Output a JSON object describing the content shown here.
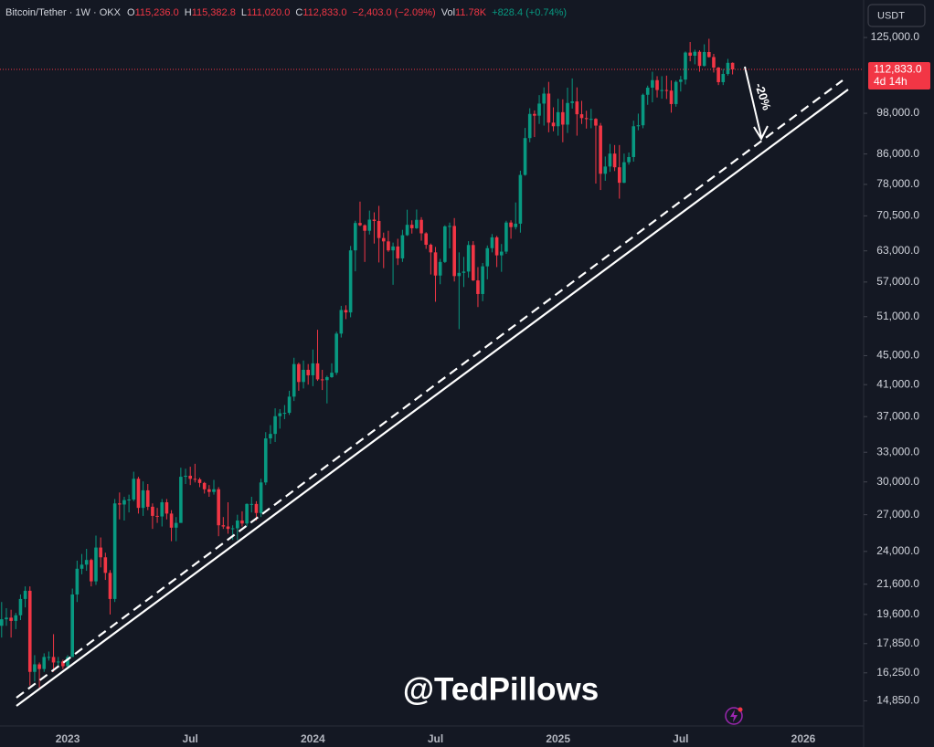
{
  "chart_data": {
    "type": "candlestick",
    "title": "Bitcoin/Tether · 1W · OKX",
    "legend": [
      {
        "label": "O",
        "value": "115,236.0"
      },
      {
        "label": "H",
        "value": "115,382.8"
      },
      {
        "label": "L",
        "value": "111,020.0"
      },
      {
        "label": "C",
        "value": "112,833.0"
      },
      {
        "label": "",
        "value": "−2,403.0 (−2.09%)"
      },
      {
        "label": "Vol",
        "value": "11.78K"
      },
      {
        "label": "",
        "value": "+828.4 (+0.74%)"
      }
    ],
    "currency": "USDT",
    "last_price": {
      "value": 112833,
      "label": "112,833.0"
    },
    "countdown": "4d 14h",
    "annotation": "-20%",
    "watermark": "@TedPillows",
    "log_scale": true,
    "grid": false,
    "up_color": "#089981",
    "down_color": "#f23645",
    "ylim": [
      13700,
      141000
    ],
    "yticks": [
      {
        "value": 125000,
        "label": "125,000.0"
      },
      {
        "value": 98000,
        "label": "98,000.0"
      },
      {
        "value": 86000,
        "label": "86,000.0"
      },
      {
        "value": 78000,
        "label": "78,000.0"
      },
      {
        "value": 70500,
        "label": "70,500.0"
      },
      {
        "value": 63000,
        "label": "63,000.0"
      },
      {
        "value": 57000,
        "label": "57,000.0"
      },
      {
        "value": 51000,
        "label": "51,000.0"
      },
      {
        "value": 45000,
        "label": "45,000.0"
      },
      {
        "value": 41000,
        "label": "41,000.0"
      },
      {
        "value": 37000,
        "label": "37,000.0"
      },
      {
        "value": 33000,
        "label": "33,000.0"
      },
      {
        "value": 30000,
        "label": "30,000.0"
      },
      {
        "value": 27000,
        "label": "27,000.0"
      },
      {
        "value": 24000,
        "label": "24,000.0"
      },
      {
        "value": 21600,
        "label": "21,600.0"
      },
      {
        "value": 19600,
        "label": "19,600.0"
      },
      {
        "value": 17850,
        "label": "17,850.0"
      },
      {
        "value": 16250,
        "label": "16,250.0"
      },
      {
        "value": 14850,
        "label": "14,850.0"
      }
    ],
    "categories": [
      null,
      null,
      null,
      null,
      null,
      null,
      null,
      null,
      null,
      null,
      null,
      null,
      null,
      null,
      "2023",
      null,
      null,
      null,
      null,
      null,
      null,
      null,
      null,
      null,
      null,
      null,
      null,
      null,
      null,
      null,
      null,
      null,
      null,
      null,
      null,
      null,
      null,
      null,
      null,
      null,
      "Jul",
      null,
      null,
      null,
      null,
      null,
      null,
      null,
      null,
      null,
      null,
      null,
      null,
      null,
      null,
      null,
      null,
      null,
      null,
      null,
      null,
      null,
      null,
      null,
      null,
      null,
      "2024",
      null,
      null,
      null,
      null,
      null,
      null,
      null,
      null,
      null,
      null,
      null,
      null,
      null,
      null,
      null,
      null,
      null,
      null,
      null,
      null,
      null,
      null,
      null,
      null,
      null,
      "Jul",
      null,
      null,
      null,
      null,
      null,
      null,
      null,
      null,
      null,
      null,
      null,
      null,
      null,
      null,
      null,
      null,
      null,
      null,
      null,
      null,
      null,
      null,
      null,
      null,
      null,
      "2025",
      null,
      null,
      null,
      null,
      null,
      null,
      null,
      null,
      null,
      null,
      null,
      null,
      null,
      null,
      null,
      null,
      null,
      null,
      null,
      null,
      null,
      null,
      null,
      null,
      null,
      "Jul",
      null,
      null,
      null,
      null,
      null,
      null,
      null,
      null,
      null,
      null,
      null,
      null,
      null,
      null,
      null,
      null,
      null,
      null,
      null,
      null,
      null,
      null,
      null,
      null,
      null,
      "2026"
    ],
    "open": [
      18900,
      19300,
      19400,
      19200,
      19550,
      20600,
      21150,
      16300,
      16700,
      16450,
      17100,
      17100,
      16800,
      16850,
      16600,
      17100,
      20900,
      22700,
      23000,
      23350,
      21800,
      24300,
      23550,
      22400,
      20600,
      28000,
      27900,
      28300,
      28350,
      30300,
      27600,
      29200,
      27700,
      26900,
      26850,
      28100,
      27100,
      25900,
      26300,
      30500,
      30600,
      30300,
      30250,
      29900,
      29300,
      29050,
      29300,
      26100,
      26000,
      25800,
      25850,
      26500,
      26250,
      27950,
      27950,
      27150,
      29950,
      34500,
      35000,
      37050,
      37400,
      37450,
      39450,
      43800,
      41350,
      43000,
      42250,
      43900,
      41700,
      41600,
      42000,
      42600,
      48300,
      52100,
      51700,
      63100,
      68900,
      68400,
      67200,
      69650,
      69350,
      65650,
      64950,
      63100,
      63900,
      61500,
      66250,
      68500,
      67750,
      69600,
      66650,
      64250,
      62700,
      58200,
      60800,
      68150,
      68250,
      58100,
      58700,
      58950,
      64200,
      57300,
      54850,
      59950,
      63550,
      65800,
      62100,
      62850,
      69000,
      68000,
      68750,
      80400,
      90500,
      97800,
      97250,
      101100,
      104400,
      95100,
      94000,
      98350,
      94500,
      101300,
      101800,
      97700,
      96500,
      96200,
      96250,
      94200,
      80700,
      82600,
      86100,
      82400,
      78400,
      83750,
      85150,
      94000,
      94300,
      104000,
      106400,
      109000,
      105600,
      105600,
      105400,
      100950,
      108400,
      109200,
      119100,
      117900,
      119400,
      114100,
      119300,
      117400,
      113500,
      108300,
      111200,
      115236,
      null,
      null,
      null,
      null,
      null,
      null,
      null,
      null,
      null,
      null,
      null,
      null,
      null,
      null,
      null
    ],
    "high": [
      20400,
      20000,
      19900,
      19700,
      20900,
      21450,
      21450,
      17200,
      16800,
      17300,
      17400,
      18400,
      17100,
      16950,
      17200,
      21300,
      23300,
      23800,
      24200,
      23450,
      25250,
      25100,
      23900,
      22600,
      28400,
      29000,
      28600,
      28800,
      31000,
      30500,
      30050,
      29800,
      28000,
      27600,
      28400,
      28400,
      27400,
      26800,
      31400,
      31300,
      31500,
      31800,
      30400,
      30000,
      29700,
      30200,
      29500,
      26800,
      28100,
      26100,
      27000,
      27300,
      28000,
      28600,
      28200,
      30300,
      35200,
      36000,
      38000,
      37900,
      38400,
      40200,
      44700,
      44000,
      44300,
      43800,
      45900,
      48900,
      43000,
      42200,
      43900,
      48600,
      52800,
      52900,
      64000,
      69400,
      73800,
      68600,
      71700,
      71300,
      72800,
      66800,
      67200,
      64700,
      65500,
      67400,
      71900,
      69500,
      71950,
      70200,
      66900,
      64500,
      63800,
      61400,
      68400,
      69000,
      70000,
      62700,
      61800,
      65000,
      65000,
      59800,
      60600,
      64100,
      66500,
      66100,
      64400,
      69400,
      69500,
      73600,
      81500,
      93500,
      99600,
      98900,
      103900,
      106500,
      108400,
      99900,
      102700,
      102500,
      106400,
      109600,
      106500,
      102000,
      98800,
      99400,
      96500,
      95000,
      85300,
      88800,
      88500,
      88500,
      86100,
      86400,
      95700,
      97900,
      104400,
      107100,
      112000,
      110400,
      110400,
      110600,
      108900,
      108900,
      110500,
      119500,
      123200,
      120200,
      120000,
      122300,
      124500,
      118600,
      113700,
      113000,
      116700,
      115382.8,
      null,
      null,
      null,
      null,
      null,
      null,
      null,
      null,
      null,
      null,
      null,
      null,
      null,
      null,
      null
    ],
    "low": [
      18200,
      18900,
      18200,
      18700,
      19250,
      20050,
      15600,
      15800,
      15500,
      16300,
      16900,
      16300,
      16550,
      16450,
      16500,
      17100,
      20400,
      22300,
      22550,
      21450,
      21550,
      22800,
      21900,
      19600,
      20400,
      26600,
      26500,
      27200,
      28200,
      27100,
      26900,
      27400,
      25800,
      26300,
      26000,
      26600,
      24800,
      24800,
      26300,
      29800,
      29700,
      29950,
      29500,
      28900,
      28600,
      28800,
      25200,
      25800,
      25400,
      24900,
      24900,
      26000,
      26000,
      27200,
      26500,
      26800,
      29700,
      33900,
      34100,
      35600,
      36700,
      37200,
      38900,
      40200,
      40500,
      41000,
      40800,
      41500,
      40300,
      38600,
      41900,
      42300,
      47700,
      50600,
      50900,
      59000,
      68200,
      60800,
      66400,
      64500,
      60700,
      59600,
      62800,
      56500,
      60200,
      60800,
      66100,
      66600,
      67600,
      65100,
      63400,
      58400,
      53500,
      56600,
      60600,
      63500,
      57100,
      49000,
      56100,
      57800,
      57200,
      52600,
      53600,
      57500,
      62700,
      59800,
      58900,
      62400,
      65500,
      67500,
      66800,
      80200,
      89300,
      90800,
      94700,
      94200,
      92200,
      92500,
      91200,
      89300,
      92000,
      99500,
      91200,
      94700,
      93300,
      93400,
      78200,
      76600,
      78900,
      81200,
      81400,
      74500,
      78300,
      83100,
      83900,
      92800,
      93400,
      100700,
      101500,
      103100,
      102700,
      102600,
      98200,
      100100,
      105100,
      107500,
      115800,
      114700,
      112000,
      113900,
      117200,
      111700,
      107300,
      107300,
      110600,
      111020,
      null,
      null,
      null,
      null,
      null,
      null,
      null,
      null,
      null,
      null,
      null,
      null,
      null,
      null,
      null
    ],
    "close": [
      19300,
      19400,
      19200,
      19550,
      20600,
      21150,
      16300,
      16700,
      16450,
      17100,
      17100,
      16800,
      16850,
      16600,
      17100,
      20900,
      22700,
      23000,
      23350,
      21800,
      24300,
      23550,
      22400,
      20600,
      28000,
      27900,
      28300,
      28350,
      30300,
      27600,
      29200,
      27700,
      26900,
      26850,
      28100,
      27100,
      25900,
      26300,
      30500,
      30600,
      30300,
      30250,
      29900,
      29300,
      29050,
      29300,
      26100,
      26000,
      25800,
      25850,
      26500,
      26250,
      27950,
      27950,
      27150,
      29950,
      34500,
      35000,
      37050,
      37400,
      37450,
      39450,
      43800,
      41350,
      43000,
      42250,
      43900,
      41700,
      41600,
      42000,
      42600,
      48300,
      52100,
      51700,
      63100,
      68900,
      68400,
      67200,
      69650,
      69350,
      65650,
      64950,
      63100,
      63900,
      61500,
      66250,
      68500,
      67750,
      69600,
      66650,
      64250,
      62700,
      58200,
      60800,
      68150,
      68250,
      58100,
      58700,
      58950,
      64200,
      57300,
      54850,
      59950,
      63550,
      65800,
      62100,
      62850,
      69000,
      68000,
      68750,
      80400,
      90500,
      97800,
      97250,
      101100,
      104400,
      95100,
      94000,
      98350,
      94500,
      101300,
      101800,
      97700,
      96500,
      96200,
      96250,
      94200,
      80700,
      82600,
      86100,
      82400,
      78400,
      83750,
      85150,
      94000,
      94300,
      104000,
      106400,
      109000,
      105600,
      105600,
      105400,
      100950,
      108400,
      109200,
      119100,
      117900,
      119400,
      114100,
      119300,
      117400,
      113500,
      108300,
      111200,
      115236,
      112833,
      null,
      null,
      null,
      null,
      null,
      null,
      null,
      null,
      null,
      null,
      null,
      null,
      null,
      null,
      null
    ]
  }
}
